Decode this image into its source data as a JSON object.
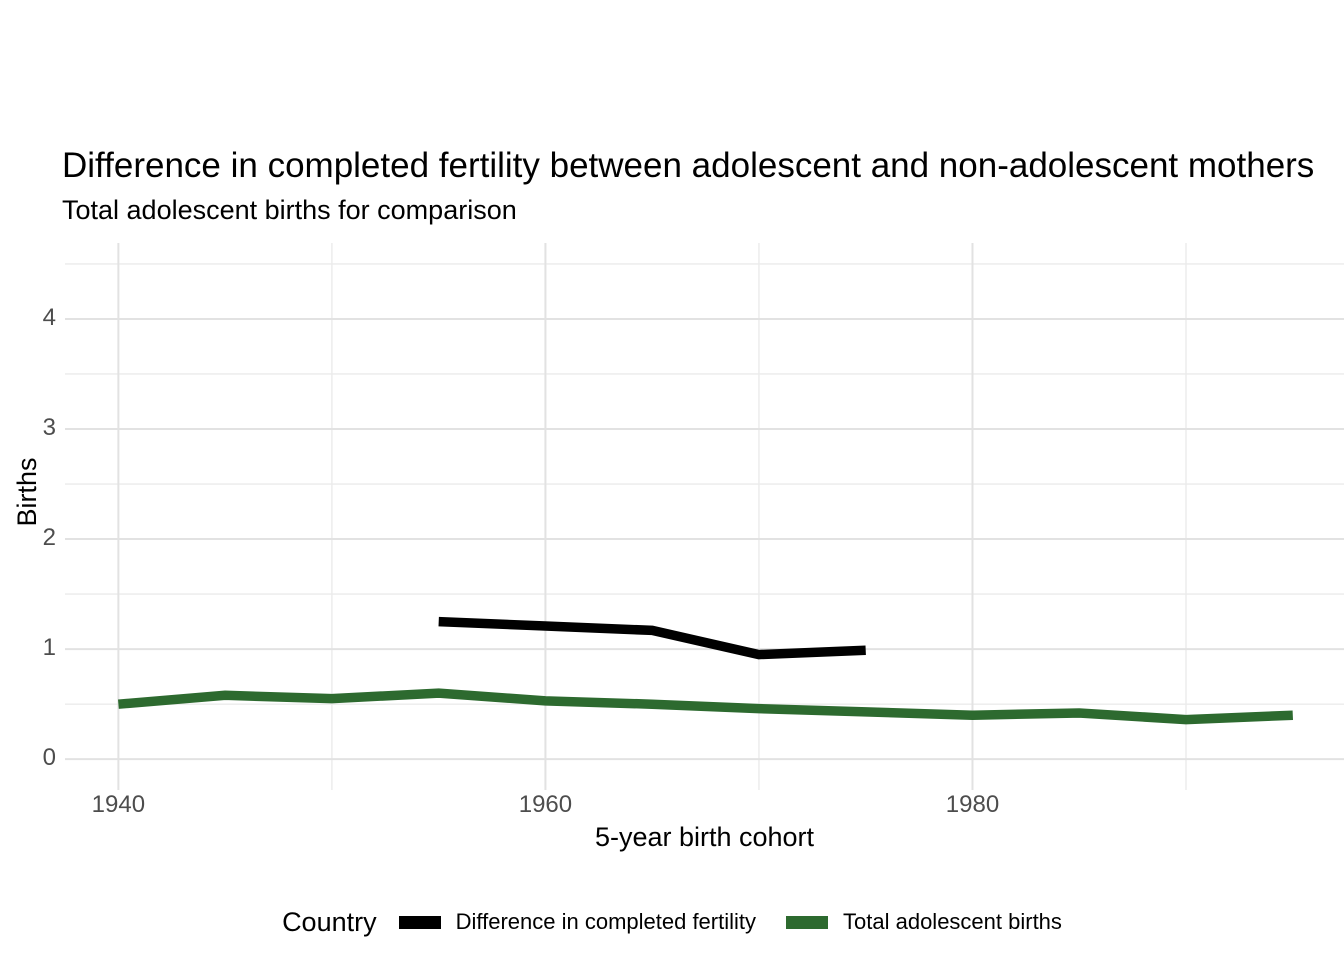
{
  "header": {
    "title": "Difference in completed fertility between adolescent and non-adolescent mothers",
    "subtitle": "Total adolescent births for comparison"
  },
  "axes": {
    "x": {
      "label": "5-year birth cohort",
      "ticks": [
        1940,
        1960,
        1980
      ],
      "tick_labels": [
        "1940",
        "1960",
        "1980"
      ],
      "minor_ticks": [
        1950,
        1970,
        1990
      ]
    },
    "y": {
      "label": "Births",
      "ticks": [
        0,
        1,
        2,
        3,
        4
      ],
      "tick_labels": [
        "0",
        "1",
        "2",
        "3",
        "4"
      ],
      "minor_ticks": [
        0.5,
        1.5,
        2.5,
        3.5,
        4.5
      ]
    }
  },
  "legend": {
    "title": "Country",
    "entries": [
      {
        "label": "Difference in completed fertility",
        "color": "#000000"
      },
      {
        "label": "Total adolescent births",
        "color": "#2d6a2f"
      }
    ]
  },
  "chart_data": {
    "type": "line",
    "title": "Difference in completed fertility between adolescent and non-adolescent mothers",
    "subtitle": "Total adolescent births for comparison",
    "xlabel": "5-year birth cohort",
    "ylabel": "Births",
    "xlim": [
      1937.5,
      1997.4
    ],
    "ylim": [
      -0.28,
      4.69
    ],
    "grid": true,
    "legend_position": "bottom",
    "series": [
      {
        "name": "Difference in completed fertility",
        "color": "#000000",
        "x": [
          1955,
          1960,
          1965,
          1970,
          1975
        ],
        "y": [
          1.25,
          1.21,
          1.17,
          0.95,
          0.99
        ]
      },
      {
        "name": "Total adolescent births",
        "color": "#2d6a2f",
        "x": [
          1940,
          1945,
          1950,
          1955,
          1960,
          1965,
          1970,
          1975,
          1980,
          1985,
          1990,
          1995
        ],
        "y": [
          0.5,
          0.58,
          0.55,
          0.6,
          0.53,
          0.5,
          0.46,
          0.43,
          0.4,
          0.42,
          0.36,
          0.4
        ]
      }
    ]
  },
  "colors": {
    "background": "#ffffff",
    "grid_major": "#e2e2e2",
    "grid_minor": "#ebebeb",
    "tick_label": "#4d4d4d",
    "text": "#000000"
  }
}
